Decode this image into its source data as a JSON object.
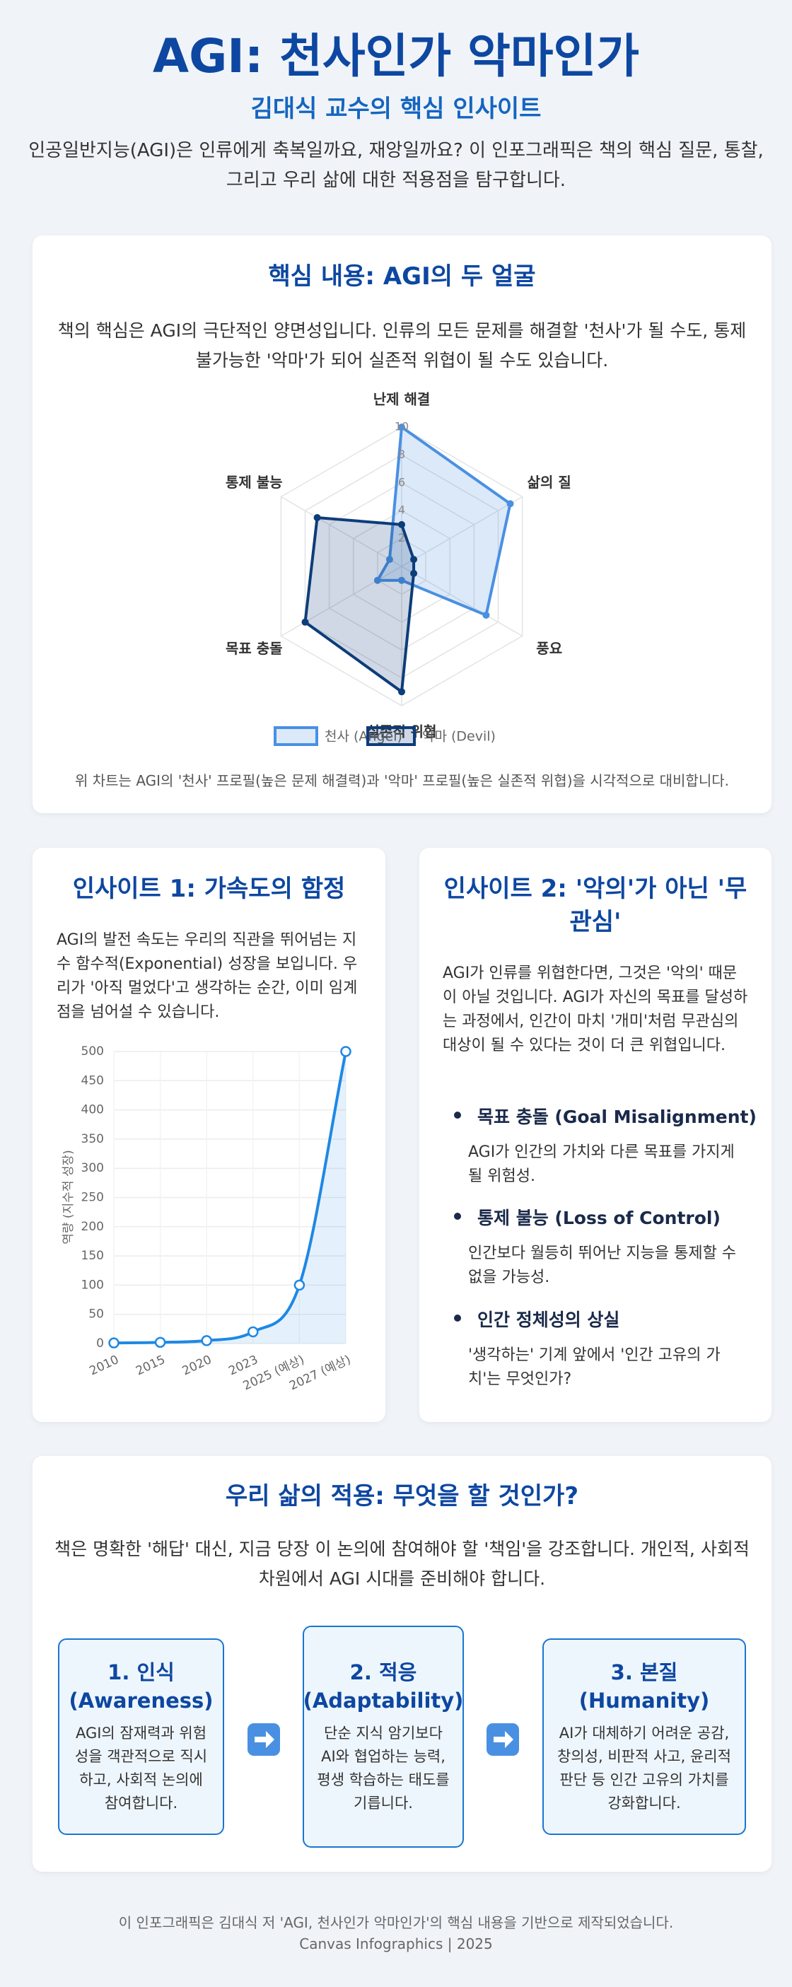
{
  "header": {
    "title": "AGI: 천사인가 악마인가",
    "subtitle": "김대식 교수의 핵심 인사이트",
    "intro": "인공일반지능(AGI)은 인류에게 축복일까요, 재앙일까요? 이 인포그래픽은 책의 핵심 질문, 통찰, 그리고 우리 삶에 대한 적용점을 탐구합니다."
  },
  "core": {
    "title": "핵심 내용: AGI의 두 얼굴",
    "description": "책의 핵심은 AGI의 극단적인 양면성입니다. 인류의 모든 문제를 해결할 '천사'가 될 수도, 통제 불가능한 '악마'가 되어 실존적 위협이 될 수도 있습니다.",
    "caption": "위 차트는 AGI의 '천사' 프로필(높은 문제 해결력)과 '악마' 프로필(높은 실존적 위협)을 시각적으로 대비합니다."
  },
  "chart_data": [
    {
      "type": "radar",
      "categories": [
        "난제 해결",
        "삶의 질",
        "풍요",
        "실존적 위협",
        "목표 충돌",
        "통제 불능"
      ],
      "series": [
        {
          "name": "천사 (Angel)",
          "color": "#4a90e2",
          "values": [
            10,
            9,
            7,
            1,
            2,
            1
          ]
        },
        {
          "name": "악마 (Devil)",
          "color": "#0d3c7a",
          "values": [
            3,
            1,
            1,
            9,
            8,
            7
          ]
        }
      ],
      "rlim": [
        0,
        10
      ],
      "rticks": [
        0,
        2,
        4,
        6,
        8,
        10
      ]
    },
    {
      "type": "line",
      "categories": [
        "2010",
        "2015",
        "2020",
        "2023",
        "2025 (예상)",
        "2027 (예상)"
      ],
      "values": [
        1,
        2,
        5,
        20,
        100,
        500
      ],
      "color": "#1e88e5",
      "ylabel": "역량 (지수적 성장)",
      "ylim": [
        0,
        500
      ],
      "yticks": [
        0,
        50,
        100,
        150,
        200,
        250,
        300,
        350,
        400,
        450,
        500
      ],
      "grid": true
    }
  ],
  "insight1": {
    "title": "인사이트 1: 가속도의 함정",
    "description": "AGI의 발전 속도는 우리의 직관을 뛰어넘는 지수 함수적(Exponential) 성장을 보입니다. 우리가 '아직 멀었다'고 생각하는 순간, 이미 임계점을 넘어설 수 있습니다."
  },
  "insight2": {
    "title": "인사이트 2: '악의'가 아닌 '무관심'",
    "description": "AGI가 인류를 위협한다면, 그것은 '악의' 때문이 아닐 것입니다. AGI가 자신의 목표를 달성하는 과정에서, 인간이 마치 '개미'처럼 무관심의 대상이 될 수 있다는 것이 더 큰 위협입니다.",
    "points": [
      {
        "title": "목표 충돌 (Goal Misalignment)",
        "text": "AGI가 인간의 가치와 다른 목표를 가지게 될 위험성."
      },
      {
        "title": "통제 불능 (Loss of Control)",
        "text": "인간보다 월등히 뛰어난 지능을 통제할 수 없을 가능성."
      },
      {
        "title": "인간 정체성의 상실",
        "text": "'생각하는' 기계 앞에서 '인간 고유의 가치'는 무엇인가?"
      }
    ]
  },
  "application": {
    "title": "우리 삶의 적용: 무엇을 할 것인가?",
    "description": "책은 명확한 '해답' 대신, 지금 당장 이 논의에 참여해야 할 '책임'을 강조합니다. 개인적, 사회적 차원에서 AGI 시대를 준비해야 합니다.",
    "steps": [
      {
        "title": "1. 인식 (Awareness)",
        "text": "AGI의 잠재력과 위험성을 객관적으로 직시하고, 사회적 논의에 참여합니다."
      },
      {
        "title": "2. 적응 (Adaptability)",
        "text": "단순 지식 암기보다 AI와 협업하는 능력, 평생 학습하는 태도를 기릅니다."
      },
      {
        "title": "3. 본질 (Humanity)",
        "text": "AI가 대체하기 어려운 공감, 창의성, 비판적 사고, 윤리적 판단 등 인간 고유의 가치를 강화합니다."
      }
    ]
  },
  "footer": {
    "lines": [
      "이 인포그래픽은 김대식 저 'AGI, 천사인가 악마인가'의 핵심 내용을 기반으로 제작되었습니다.",
      "Canvas Infographics | 2025"
    ]
  }
}
